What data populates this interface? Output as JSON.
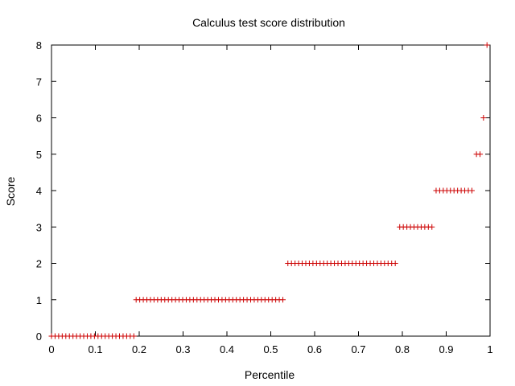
{
  "chart_data": {
    "type": "scatter",
    "title": "Calculus test score distribution",
    "xlabel": "Percentile",
    "ylabel": "Score",
    "xlim": [
      0,
      1
    ],
    "ylim": [
      0,
      8
    ],
    "xticks": [
      "0",
      "0.1",
      "0.2",
      "0.3",
      "0.4",
      "0.5",
      "0.6",
      "0.7",
      "0.8",
      "0.9",
      "1"
    ],
    "yticks": [
      "0",
      "1",
      "2",
      "3",
      "4",
      "5",
      "6",
      "7",
      "8"
    ],
    "marker_color": "#cc0000",
    "groups": [
      {
        "score": 0,
        "x_start": 0.0,
        "x_end": 0.185
      },
      {
        "score": 1,
        "x_start": 0.193,
        "x_end": 0.531
      },
      {
        "score": 2,
        "x_start": 0.539,
        "x_end": 0.786
      },
      {
        "score": 3,
        "x_start": 0.794,
        "x_end": 0.869
      },
      {
        "score": 4,
        "x_start": 0.877,
        "x_end": 0.961
      },
      {
        "score": 5,
        "x_start": 0.969,
        "x_end": 0.977
      },
      {
        "score": 6,
        "x_start": 0.985,
        "x_end": 0.985
      },
      {
        "score": 8,
        "x_start": 0.993,
        "x_end": 0.993
      }
    ],
    "step": 0.00816
  }
}
